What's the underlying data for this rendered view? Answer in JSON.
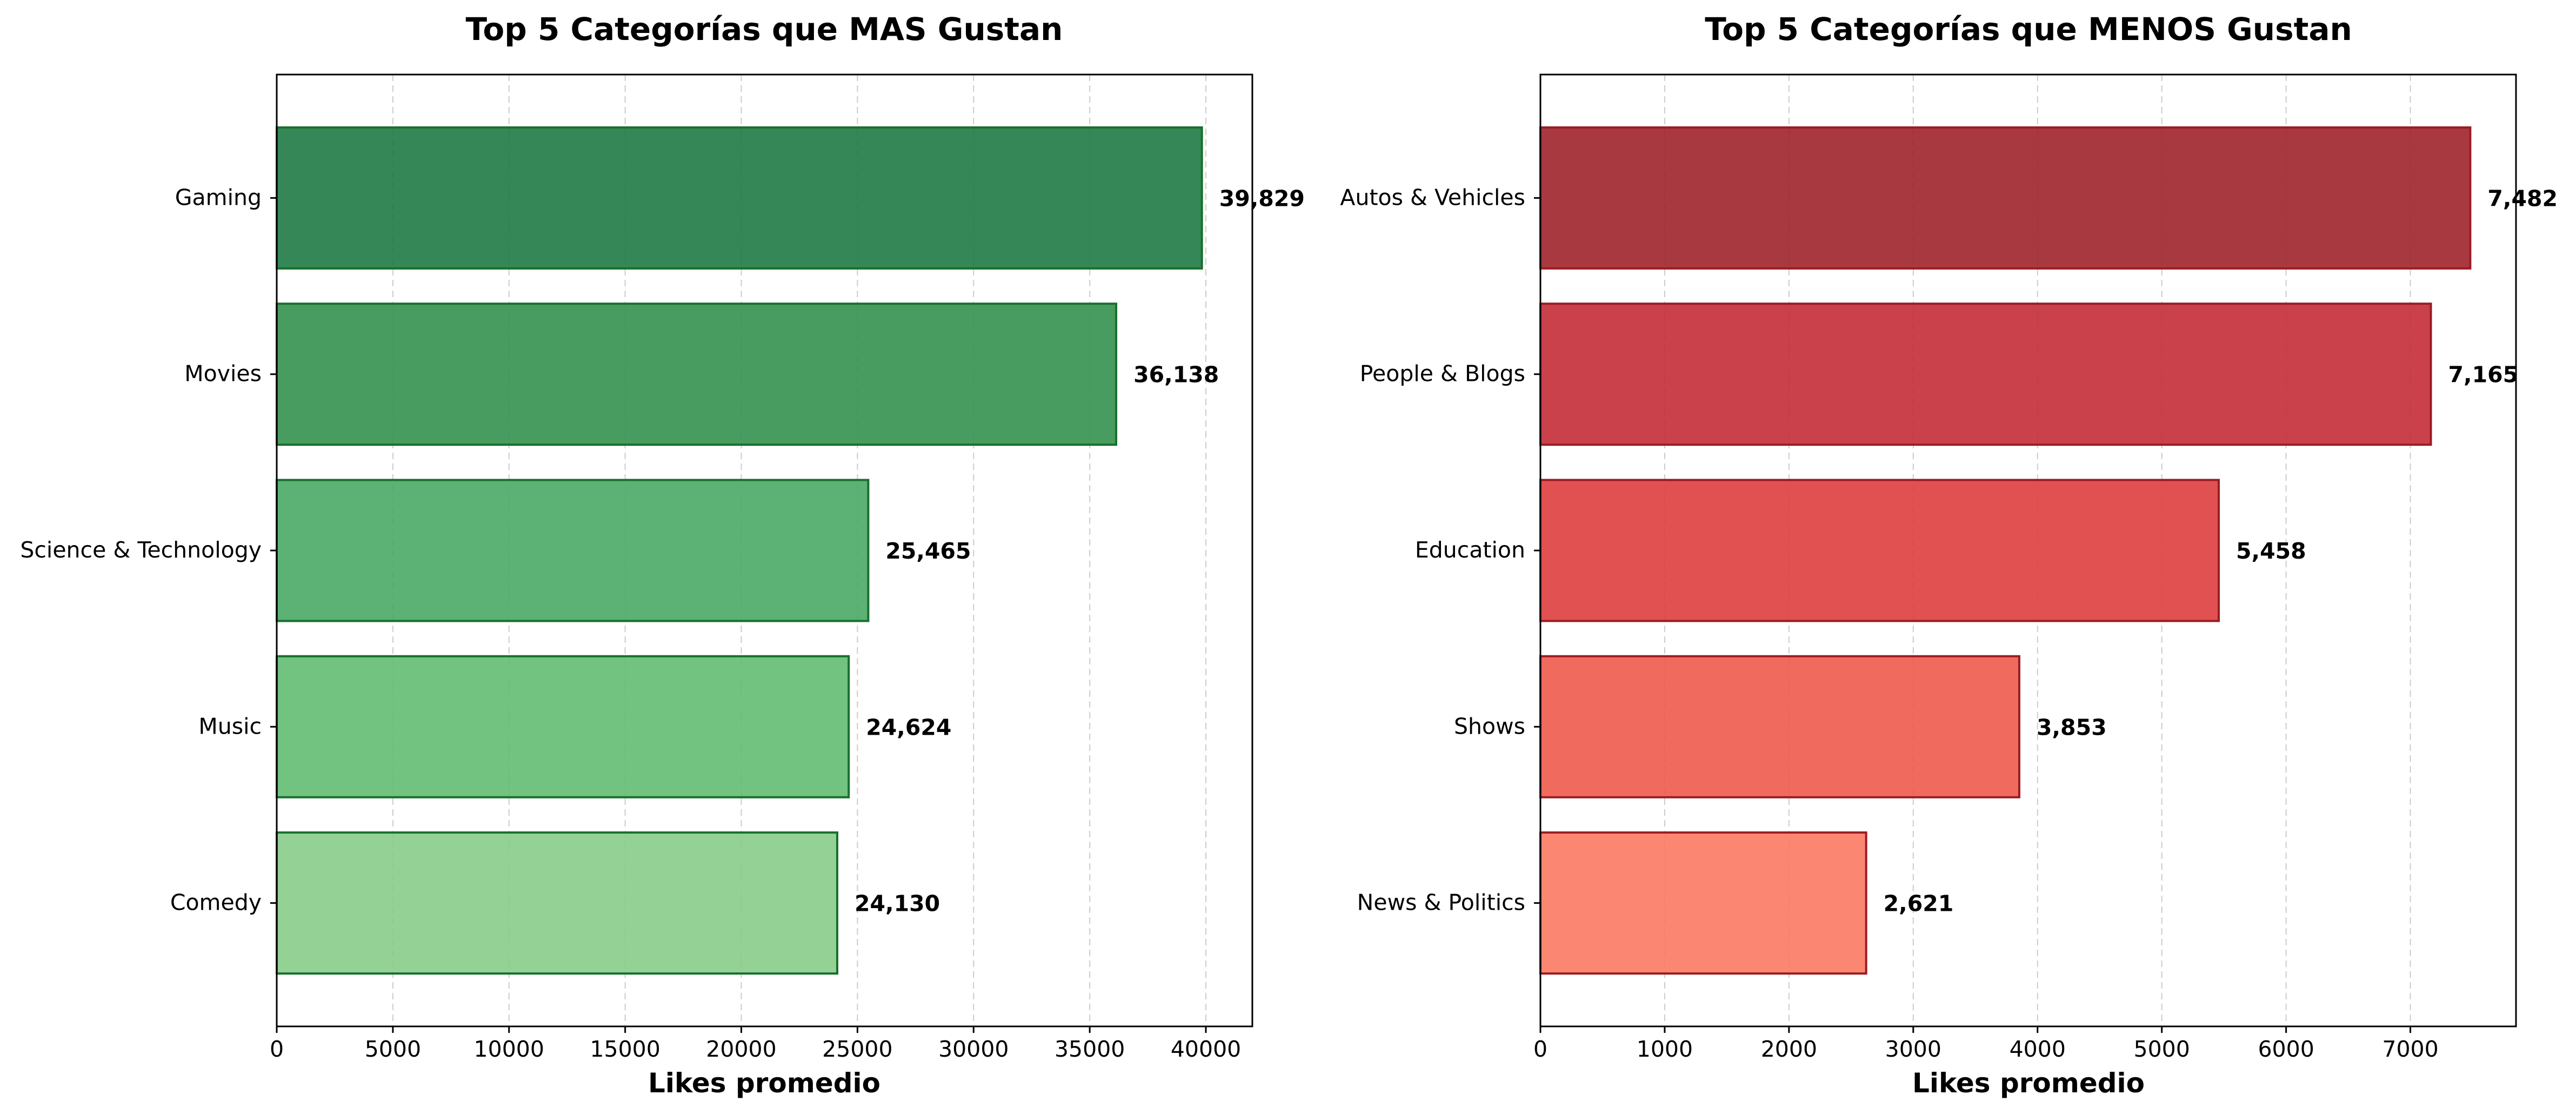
{
  "charts": [
    {
      "id": "most",
      "chart_data": {
        "type": "bar",
        "orientation": "horizontal",
        "title": "Top 5 Categorías que MAS Gustan",
        "xlabel": "Likes promedio",
        "ylabel": "",
        "categories": [
          "Gaming",
          "Movies",
          "Science & Technology",
          "Music",
          "Comedy"
        ],
        "values": [
          39829,
          36138,
          25465,
          24624,
          24130
        ],
        "value_labels": [
          "39,829",
          "36,138",
          "25,465",
          "24,624",
          "24,130"
        ],
        "xlim": [
          0,
          42000
        ],
        "xticks": [
          0,
          5000,
          10000,
          15000,
          20000,
          25000,
          30000,
          35000,
          40000
        ],
        "xtick_labels": [
          "0",
          "5000",
          "10000",
          "15000",
          "20000",
          "25000",
          "30000",
          "35000",
          "40000"
        ],
        "grid": "x, dashed",
        "colors": [
          "#1f7a45",
          "#35914f",
          "#4aa866",
          "#63bb72",
          "#88cc89"
        ],
        "edge_color": "#17702c"
      }
    },
    {
      "id": "least",
      "chart_data": {
        "type": "bar",
        "orientation": "horizontal",
        "title": "Top 5 Categorías que MENOS Gustan",
        "xlabel": "Likes promedio",
        "ylabel": "",
        "categories": [
          "Autos & Vehicles",
          "People & Blogs",
          "Education",
          "Shows",
          "News & Politics"
        ],
        "values": [
          7482,
          7165,
          5458,
          3853,
          2621
        ],
        "value_labels": [
          "7,482",
          "7,165",
          "5,458",
          "3,853",
          "2,621"
        ],
        "xlim": [
          0,
          7850
        ],
        "xticks": [
          0,
          1000,
          2000,
          3000,
          4000,
          5000,
          6000,
          7000
        ],
        "xtick_labels": [
          "0",
          "1000",
          "2000",
          "3000",
          "4000",
          "5000",
          "6000",
          "7000"
        ],
        "grid": "x, dashed",
        "colors": [
          "#a0242c",
          "#c42c38",
          "#de3e3e",
          "#f05a4c",
          "#fb7a64"
        ],
        "edge_color": "#9b1c22"
      }
    }
  ]
}
